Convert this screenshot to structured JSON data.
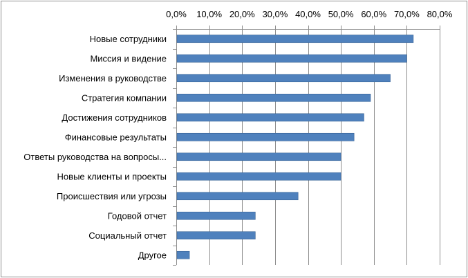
{
  "chart_data": {
    "type": "bar",
    "orientation": "horizontal",
    "categories": [
      "Новые сотрудники",
      "Миссия и видение",
      "Изменения в руководстве",
      "Стратегия компании",
      "Достижения сотрудников",
      "Финансовые результаты",
      "Ответы руководства на вопросы...",
      "Новые клиенты и проекты",
      "Происшествия или угрозы",
      "Годовой отчет",
      "Социальный отчет",
      "Другое"
    ],
    "values": [
      72,
      70,
      65,
      59,
      57,
      54,
      50,
      50,
      37,
      24,
      24,
      4
    ],
    "value_unit": "percent",
    "xlim": [
      0,
      80
    ],
    "ticks": [
      0,
      10,
      20,
      30,
      40,
      50,
      60,
      70,
      80
    ],
    "tick_labels": [
      "0,0%",
      "10,0%",
      "20,0%",
      "30,0%",
      "40,0%",
      "50,0%",
      "60,0%",
      "70,0%",
      "80,0%"
    ],
    "axis_position": "top",
    "grid": "vertical",
    "title": "",
    "xlabel": "",
    "ylabel": "",
    "colors": {
      "bar": "#4F81BD",
      "bar_border": "#3A6496",
      "grid": "#8c8c8c",
      "axis": "#8c8c8c"
    }
  }
}
